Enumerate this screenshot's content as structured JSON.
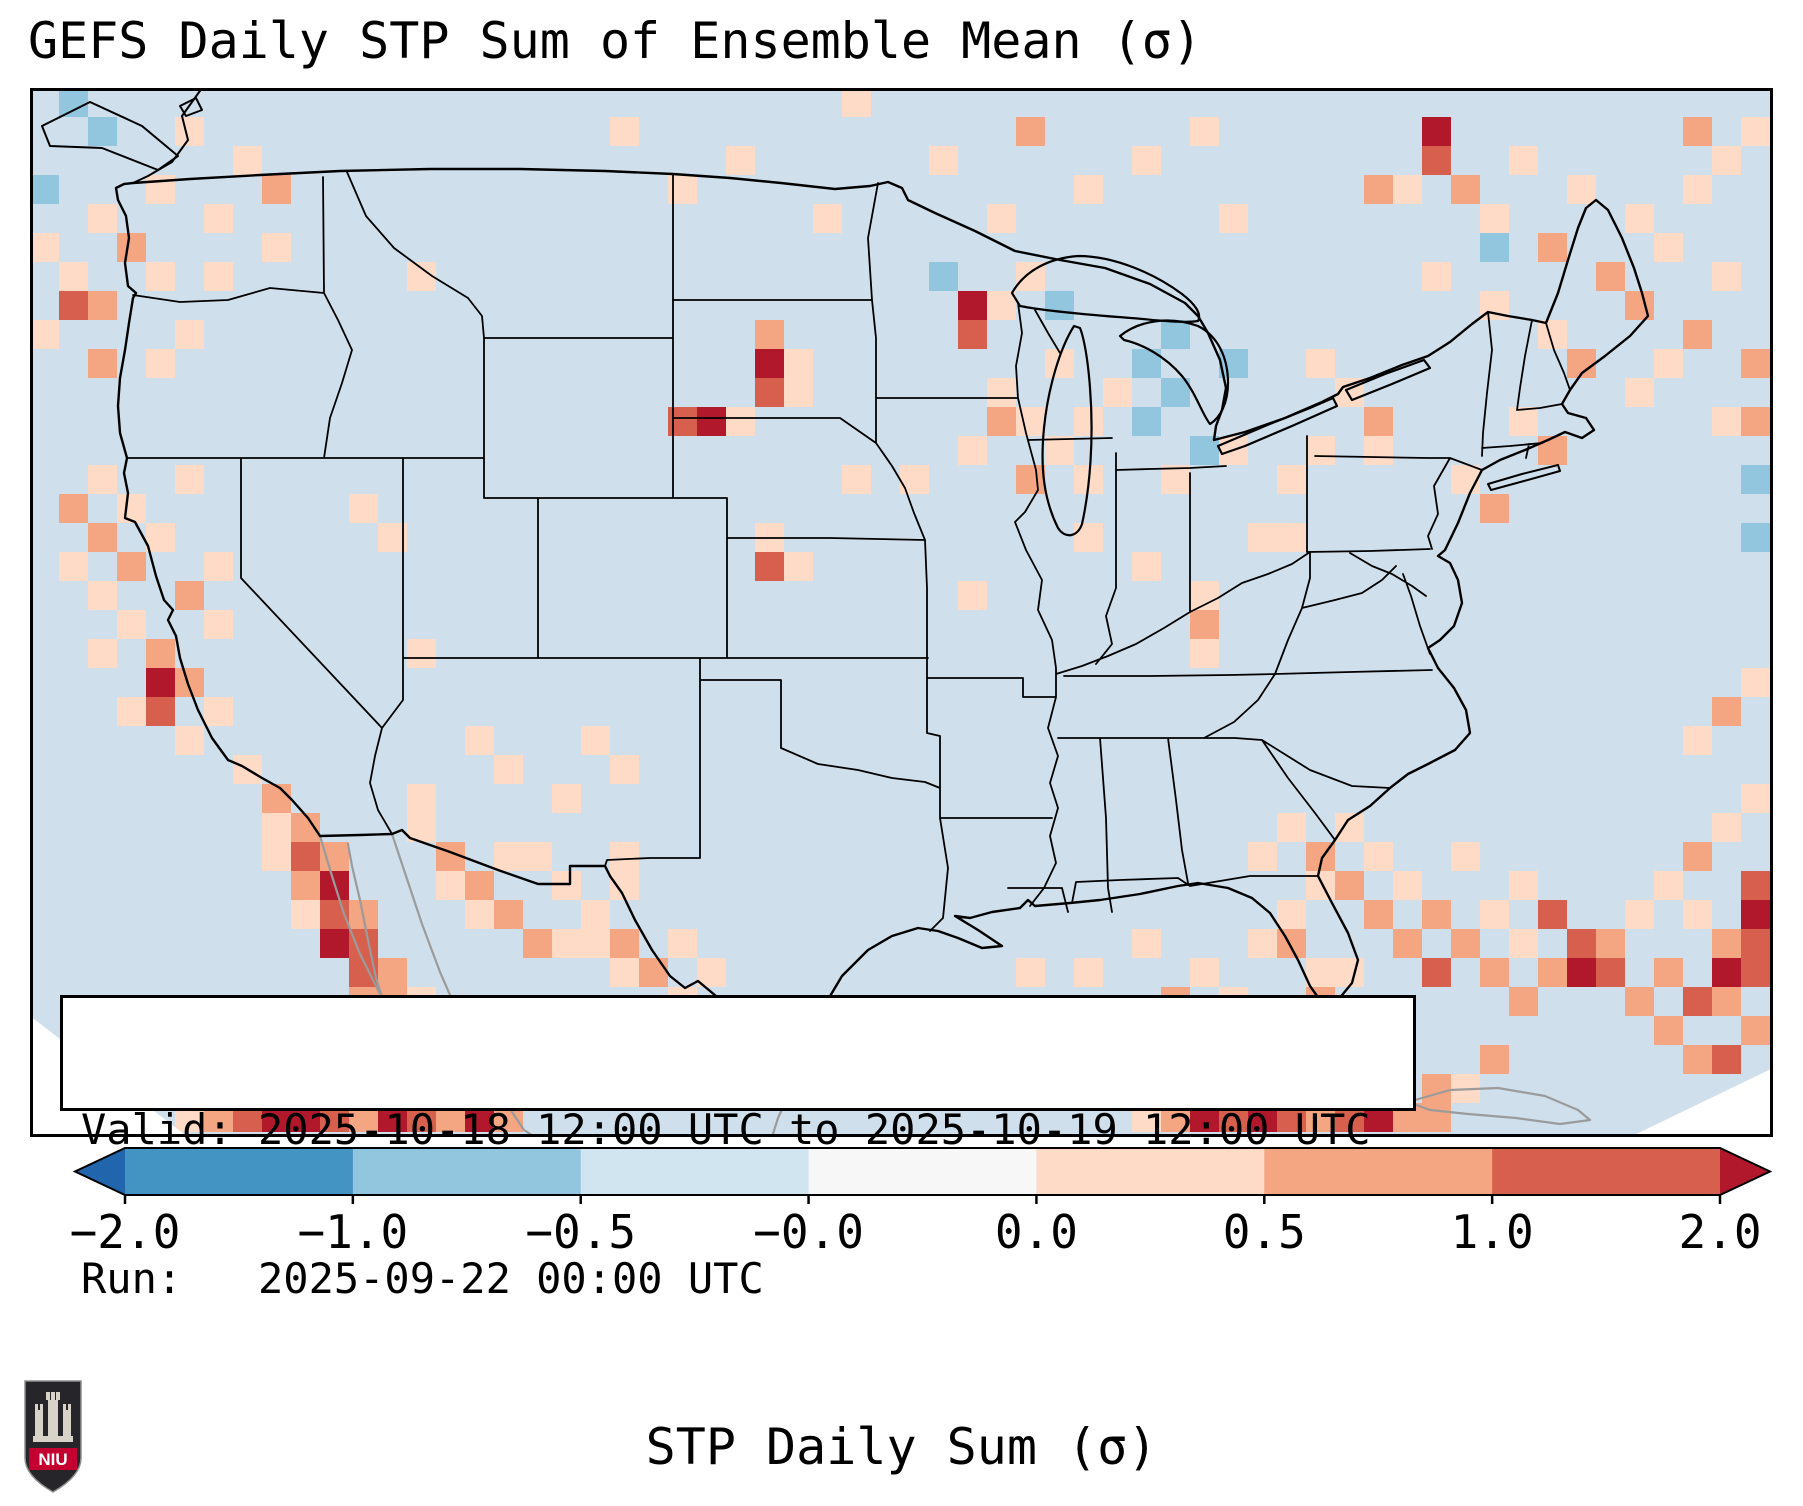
{
  "title": "GEFS Daily STP Sum of Ensemble Mean (σ)",
  "info_box": {
    "line1": "Valid: 2025-10-18 12:00 UTC to 2025-10-19 12:00 UTC",
    "line2": "Run:   2025-09-22 00:00 UTC"
  },
  "colorbar": {
    "label": "STP Daily Sum (σ)",
    "ticks": [
      "−2.0",
      "−1.0",
      "−0.5",
      "−0.0",
      "0.0",
      "0.5",
      "1.0",
      "2.0"
    ],
    "segments": [
      "#4393c3",
      "#92c5de",
      "#d1e5f0",
      "#f7f7f7",
      "#fddbc7",
      "#f4a582",
      "#d6604d"
    ],
    "extend_left": "#2166ac",
    "extend_right": "#b2182b"
  },
  "logo": {
    "text": "NIU"
  },
  "chart_data": {
    "type": "heatmap",
    "title": "GEFS Daily STP Sum of Ensemble Mean (σ)",
    "colorbar_label": "STP Daily Sum (σ)",
    "colorbar_ticks": [
      -2.0,
      -1.0,
      -0.5,
      -0.0,
      0.0,
      0.5,
      1.0,
      2.0
    ],
    "valid_period": "2025-10-18 12:00 UTC to 2025-10-19 12:00 UTC",
    "run": "2025-09-22 00:00 UTC"
  },
  "map": {
    "background": "#cfdfec",
    "cell_size": 29,
    "level_colors": {
      "-2": "#4393c3",
      "-1": "#92c5de",
      "1": "#fddbc7",
      "2": "#f4a582",
      "3": "#d6604d",
      "4": "#b2182b"
    },
    "cells": [
      [
        1,
        0,
        -1
      ],
      [
        2,
        1,
        -1
      ],
      [
        0,
        3,
        -1
      ],
      [
        31,
        6,
        -1
      ],
      [
        35,
        7,
        -1
      ],
      [
        38,
        9,
        -1
      ],
      [
        39,
        10,
        -1
      ],
      [
        38,
        11,
        -1
      ],
      [
        40,
        12,
        -1
      ],
      [
        39,
        8,
        -1
      ],
      [
        41,
        9,
        -1
      ],
      [
        50,
        5,
        -1
      ],
      [
        59,
        13,
        -1
      ],
      [
        59,
        15,
        -1
      ],
      [
        5,
        1,
        1
      ],
      [
        7,
        2,
        1
      ],
      [
        8,
        3,
        2
      ],
      [
        6,
        4,
        1
      ],
      [
        4,
        3,
        1
      ],
      [
        2,
        4,
        1
      ],
      [
        0,
        5,
        1
      ],
      [
        3,
        5,
        2
      ],
      [
        1,
        6,
        1
      ],
      [
        1,
        7,
        3
      ],
      [
        2,
        7,
        2
      ],
      [
        4,
        6,
        1
      ],
      [
        6,
        6,
        1
      ],
      [
        8,
        5,
        1
      ],
      [
        0,
        8,
        1
      ],
      [
        2,
        9,
        2
      ],
      [
        4,
        9,
        1
      ],
      [
        5,
        8,
        1
      ],
      [
        20,
        1,
        1
      ],
      [
        24,
        2,
        1
      ],
      [
        28,
        0,
        1
      ],
      [
        31,
        2,
        1
      ],
      [
        34,
        1,
        2
      ],
      [
        36,
        3,
        1
      ],
      [
        27,
        4,
        1
      ],
      [
        22,
        3,
        1
      ],
      [
        33,
        4,
        1
      ],
      [
        38,
        2,
        1
      ],
      [
        40,
        1,
        1
      ],
      [
        41,
        4,
        1
      ],
      [
        13,
        6,
        1
      ],
      [
        32,
        7,
        4
      ],
      [
        32,
        8,
        3
      ],
      [
        33,
        7,
        1
      ],
      [
        34,
        6,
        1
      ],
      [
        33,
        10,
        1
      ],
      [
        33,
        11,
        2
      ],
      [
        34,
        11,
        1
      ],
      [
        32,
        12,
        1
      ],
      [
        34,
        13,
        2
      ],
      [
        35,
        12,
        1
      ],
      [
        36,
        13,
        1
      ],
      [
        36,
        11,
        1
      ],
      [
        35,
        9,
        1
      ],
      [
        37,
        10,
        1
      ],
      [
        39,
        13,
        1
      ],
      [
        41,
        12,
        1
      ],
      [
        43,
        13,
        1
      ],
      [
        25,
        8,
        2
      ],
      [
        25,
        9,
        4
      ],
      [
        25,
        10,
        3
      ],
      [
        26,
        9,
        1
      ],
      [
        26,
        10,
        1
      ],
      [
        22,
        11,
        3
      ],
      [
        23,
        11,
        4
      ],
      [
        24,
        11,
        1
      ],
      [
        25,
        16,
        3
      ],
      [
        25,
        15,
        1
      ],
      [
        26,
        16,
        1
      ],
      [
        28,
        13,
        1
      ],
      [
        30,
        13,
        1
      ],
      [
        19,
        22,
        1
      ],
      [
        20,
        23,
        1
      ],
      [
        16,
        23,
        1
      ],
      [
        13,
        19,
        1
      ],
      [
        15,
        22,
        1
      ],
      [
        11,
        14,
        1
      ],
      [
        12,
        15,
        1
      ],
      [
        2,
        13,
        1
      ],
      [
        1,
        14,
        2
      ],
      [
        3,
        14,
        1
      ],
      [
        2,
        15,
        2
      ],
      [
        4,
        15,
        1
      ],
      [
        1,
        16,
        1
      ],
      [
        3,
        16,
        2
      ],
      [
        2,
        17,
        1
      ],
      [
        5,
        17,
        2
      ],
      [
        3,
        18,
        1
      ],
      [
        2,
        19,
        1
      ],
      [
        4,
        19,
        2
      ],
      [
        5,
        13,
        1
      ],
      [
        6,
        16,
        1
      ],
      [
        6,
        18,
        1
      ],
      [
        4,
        20,
        4
      ],
      [
        4,
        21,
        3
      ],
      [
        5,
        20,
        2
      ],
      [
        3,
        21,
        1
      ],
      [
        5,
        22,
        1
      ],
      [
        6,
        21,
        1
      ],
      [
        7,
        23,
        1
      ],
      [
        8,
        24,
        2
      ],
      [
        8,
        25,
        1
      ],
      [
        9,
        25,
        2
      ],
      [
        8,
        26,
        1
      ],
      [
        9,
        26,
        3
      ],
      [
        10,
        26,
        2
      ],
      [
        9,
        27,
        2
      ],
      [
        10,
        27,
        4
      ],
      [
        10,
        28,
        3
      ],
      [
        11,
        28,
        2
      ],
      [
        9,
        28,
        1
      ],
      [
        10,
        29,
        4
      ],
      [
        11,
        29,
        3
      ],
      [
        11,
        30,
        3
      ],
      [
        12,
        30,
        2
      ],
      [
        12,
        31,
        2
      ],
      [
        11,
        31,
        2
      ],
      [
        13,
        31,
        1
      ],
      [
        13,
        25,
        1
      ],
      [
        14,
        26,
        2
      ],
      [
        14,
        27,
        1
      ],
      [
        15,
        27,
        2
      ],
      [
        15,
        28,
        1
      ],
      [
        16,
        28,
        2
      ],
      [
        16,
        26,
        1
      ],
      [
        17,
        29,
        2
      ],
      [
        18,
        29,
        1
      ],
      [
        13,
        24,
        1
      ],
      [
        18,
        27,
        1
      ],
      [
        17,
        26,
        1
      ],
      [
        19,
        28,
        1
      ],
      [
        20,
        29,
        2
      ],
      [
        19,
        29,
        1
      ],
      [
        20,
        30,
        1
      ],
      [
        21,
        30,
        2
      ],
      [
        22,
        31,
        1
      ],
      [
        23,
        30,
        1
      ],
      [
        18,
        24,
        1
      ],
      [
        20,
        26,
        1
      ],
      [
        20,
        27,
        1
      ],
      [
        22,
        29,
        1
      ],
      [
        36,
        15,
        1
      ],
      [
        32,
        17,
        1
      ],
      [
        38,
        16,
        1
      ],
      [
        40,
        17,
        1
      ],
      [
        40,
        18,
        2
      ],
      [
        40,
        19,
        1
      ],
      [
        42,
        15,
        1
      ],
      [
        43,
        15,
        1
      ],
      [
        44,
        9,
        1
      ],
      [
        45,
        10,
        1
      ],
      [
        46,
        11,
        2
      ],
      [
        44,
        12,
        1
      ],
      [
        46,
        12,
        1
      ],
      [
        48,
        1,
        4
      ],
      [
        48,
        2,
        3
      ],
      [
        47,
        3,
        1
      ],
      [
        46,
        3,
        2
      ],
      [
        49,
        3,
        2
      ],
      [
        50,
        4,
        1
      ],
      [
        51,
        2,
        1
      ],
      [
        52,
        5,
        2
      ],
      [
        53,
        3,
        1
      ],
      [
        54,
        6,
        2
      ],
      [
        55,
        4,
        1
      ],
      [
        55,
        7,
        2
      ],
      [
        56,
        5,
        1
      ],
      [
        57,
        8,
        2
      ],
      [
        56,
        9,
        1
      ],
      [
        52,
        8,
        1
      ],
      [
        50,
        7,
        1
      ],
      [
        53,
        9,
        2
      ],
      [
        48,
        6,
        1
      ],
      [
        58,
        6,
        1
      ],
      [
        57,
        3,
        1
      ],
      [
        59,
        9,
        2
      ],
      [
        57,
        1,
        2
      ],
      [
        58,
        2,
        1
      ],
      [
        59,
        1,
        1
      ],
      [
        49,
        13,
        1
      ],
      [
        50,
        14,
        2
      ],
      [
        51,
        11,
        1
      ],
      [
        52,
        12,
        2
      ],
      [
        55,
        10,
        1
      ],
      [
        58,
        11,
        1
      ],
      [
        59,
        11,
        2
      ],
      [
        42,
        26,
        1
      ],
      [
        43,
        25,
        1
      ],
      [
        44,
        26,
        2
      ],
      [
        45,
        25,
        1
      ],
      [
        44,
        27,
        1
      ],
      [
        45,
        27,
        2
      ],
      [
        46,
        26,
        1
      ],
      [
        46,
        28,
        2
      ],
      [
        47,
        27,
        1
      ],
      [
        47,
        29,
        2
      ],
      [
        48,
        28,
        2
      ],
      [
        48,
        30,
        3
      ],
      [
        49,
        29,
        2
      ],
      [
        50,
        28,
        1
      ],
      [
        51,
        29,
        1
      ],
      [
        50,
        30,
        2
      ],
      [
        51,
        31,
        2
      ],
      [
        52,
        28,
        3
      ],
      [
        53,
        29,
        3
      ],
      [
        53,
        30,
        4
      ],
      [
        54,
        29,
        2
      ],
      [
        52,
        30,
        2
      ],
      [
        54,
        30,
        3
      ],
      [
        55,
        31,
        2
      ],
      [
        56,
        30,
        2
      ],
      [
        56,
        32,
        2
      ],
      [
        57,
        31,
        3
      ],
      [
        58,
        31,
        2
      ],
      [
        57,
        33,
        2
      ],
      [
        58,
        33,
        3
      ],
      [
        59,
        27,
        3
      ],
      [
        59,
        28,
        4
      ],
      [
        59,
        29,
        3
      ],
      [
        58,
        29,
        2
      ],
      [
        58,
        30,
        4
      ],
      [
        59,
        30,
        3
      ],
      [
        59,
        32,
        2
      ],
      [
        55,
        28,
        1
      ],
      [
        56,
        27,
        1
      ],
      [
        57,
        26,
        2
      ],
      [
        58,
        25,
        1
      ],
      [
        59,
        24,
        1
      ],
      [
        57,
        28,
        1
      ],
      [
        49,
        26,
        1
      ],
      [
        51,
        27,
        1
      ],
      [
        58,
        21,
        2
      ],
      [
        59,
        20,
        1
      ],
      [
        57,
        22,
        1
      ],
      [
        43,
        28,
        1
      ],
      [
        43,
        29,
        2
      ],
      [
        44,
        30,
        1
      ],
      [
        42,
        29,
        1
      ],
      [
        44,
        31,
        2
      ],
      [
        45,
        30,
        1
      ],
      [
        38,
        29,
        1
      ],
      [
        36,
        30,
        1
      ],
      [
        40,
        30,
        1
      ],
      [
        34,
        30,
        1
      ],
      [
        39,
        31,
        2
      ],
      [
        41,
        31,
        1
      ],
      [
        5,
        35,
        1
      ],
      [
        6,
        35,
        2
      ],
      [
        7,
        35,
        3
      ],
      [
        8,
        35,
        4
      ],
      [
        9,
        35,
        4
      ],
      [
        10,
        35,
        3
      ],
      [
        11,
        35,
        2
      ],
      [
        12,
        35,
        4
      ],
      [
        13,
        35,
        3
      ],
      [
        14,
        35,
        2
      ],
      [
        15,
        35,
        4
      ],
      [
        16,
        35,
        2
      ],
      [
        38,
        35,
        1
      ],
      [
        39,
        35,
        2
      ],
      [
        40,
        35,
        4
      ],
      [
        41,
        35,
        3
      ],
      [
        42,
        35,
        4
      ],
      [
        43,
        35,
        3
      ],
      [
        44,
        35,
        2
      ],
      [
        45,
        35,
        3
      ],
      [
        46,
        35,
        4
      ],
      [
        47,
        35,
        2
      ],
      [
        48,
        35,
        2
      ],
      [
        48,
        34,
        2
      ],
      [
        49,
        34,
        1
      ],
      [
        50,
        33,
        2
      ]
    ]
  }
}
